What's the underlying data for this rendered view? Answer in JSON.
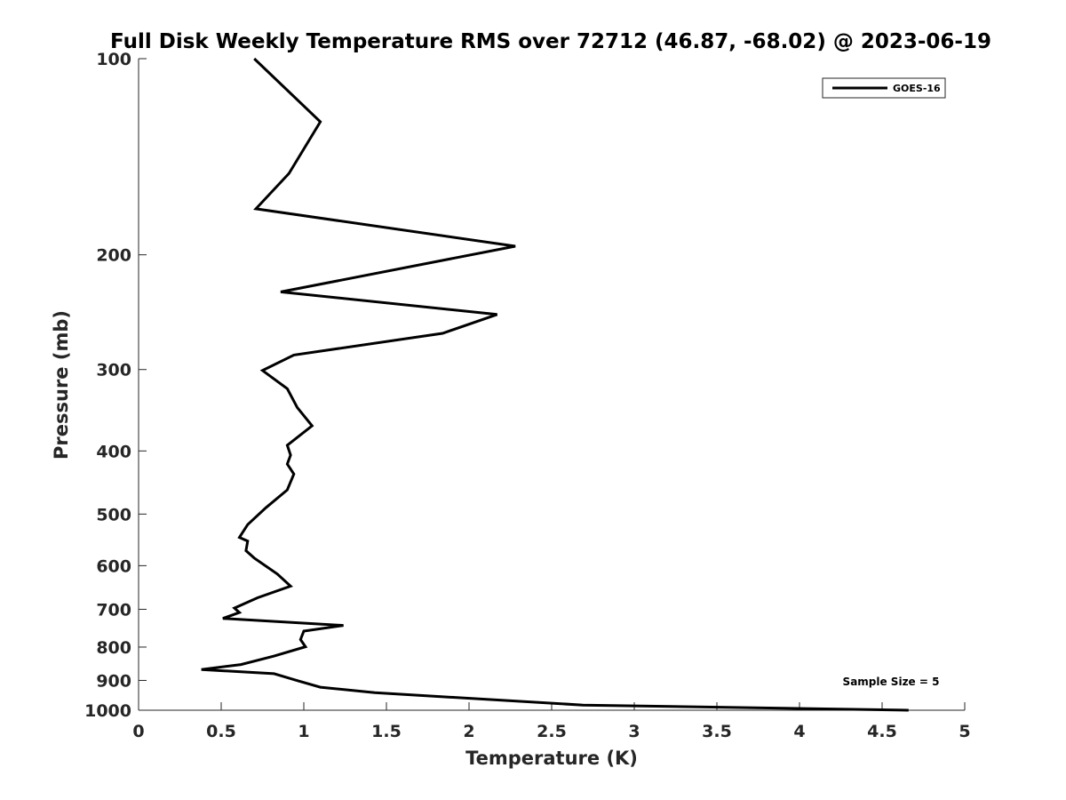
{
  "chart_data": {
    "type": "line",
    "title": "Full Disk Weekly Temperature RMS over 72712 (46.87, -68.02) @ 2023-06-19",
    "xlabel": "Temperature (K)",
    "ylabel": "Pressure (mb)",
    "xlim": [
      0,
      5
    ],
    "ylim": [
      100,
      1000
    ],
    "y_scale": "log",
    "y_reversed": true,
    "grid": false,
    "x_ticks": [
      0,
      0.5,
      1,
      1.5,
      2,
      2.5,
      3,
      3.5,
      4,
      4.5,
      5
    ],
    "x_tick_labels": [
      "0",
      "0.5",
      "1",
      "1.5",
      "2",
      "2.5",
      "3",
      "3.5",
      "4",
      "4.5",
      "5"
    ],
    "y_ticks": [
      100,
      200,
      300,
      400,
      500,
      600,
      700,
      800,
      900,
      1000
    ],
    "y_tick_labels": [
      "100",
      "200",
      "300",
      "400",
      "500",
      "600",
      "700",
      "800",
      "900",
      "1000"
    ],
    "legend": {
      "position": "top-right"
    },
    "series": [
      {
        "name": "GOES-16",
        "color": "#000000",
        "points": [
          [
            0.7,
            100
          ],
          [
            1.1,
            125
          ],
          [
            0.91,
            150
          ],
          [
            0.71,
            170
          ],
          [
            2.28,
            194
          ],
          [
            0.86,
            228
          ],
          [
            2.17,
            247
          ],
          [
            1.84,
            264
          ],
          [
            0.94,
            285
          ],
          [
            0.75,
            301
          ],
          [
            0.9,
            321
          ],
          [
            0.96,
            343
          ],
          [
            1.05,
            366
          ],
          [
            0.9,
            392
          ],
          [
            0.92,
            406
          ],
          [
            0.9,
            419
          ],
          [
            0.94,
            434
          ],
          [
            0.9,
            459
          ],
          [
            0.77,
            489
          ],
          [
            0.66,
            519
          ],
          [
            0.61,
            543
          ],
          [
            0.66,
            550
          ],
          [
            0.65,
            569
          ],
          [
            0.7,
            584
          ],
          [
            0.84,
            618
          ],
          [
            0.92,
            645
          ],
          [
            0.72,
            672
          ],
          [
            0.58,
            697
          ],
          [
            0.61,
            708
          ],
          [
            0.51,
            723
          ],
          [
            1.24,
            741
          ],
          [
            1.0,
            756
          ],
          [
            0.98,
            779
          ],
          [
            1.01,
            799
          ],
          [
            0.82,
            826
          ],
          [
            0.62,
            851
          ],
          [
            0.38,
            866
          ],
          [
            0.82,
            879
          ],
          [
            0.97,
            902
          ],
          [
            1.1,
            922
          ],
          [
            1.43,
            940
          ],
          [
            2.69,
            982
          ],
          [
            4.66,
            1000
          ]
        ]
      }
    ],
    "annotations": [
      "Sample Size = 5"
    ]
  }
}
